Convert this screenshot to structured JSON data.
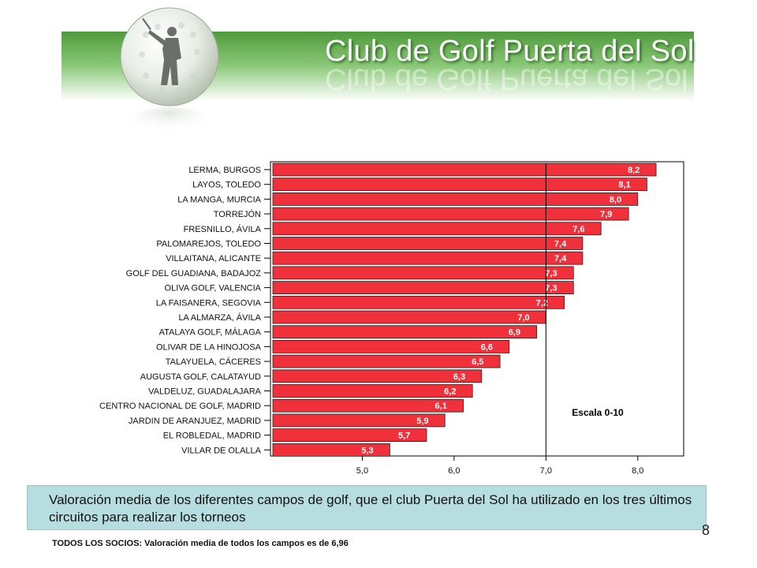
{
  "header": {
    "title": "Club de Golf Puerta del Sol"
  },
  "chart_data": {
    "type": "bar",
    "orientation": "horizontal",
    "categories": [
      "LERMA, BURGOS",
      "LAYOS, TOLEDO",
      "LA MANGA, MURCIA",
      "TORREJÓN",
      "FRESNILLO, ÁVILA",
      "PALOMAREJOS, TOLEDO",
      "VILLAITANA, ALICANTE",
      "GOLF DEL GUADIANA, BADAJOZ",
      "OLIVA GOLF, VALENCIA",
      "LA FAISANERA, SEGOVIA",
      "LA ALMARZA, ÁVILA",
      "ATALAYA GOLF, MÁLAGA",
      "OLIVAR DE LA HINOJOSA",
      "TALAYUELA, CÁCERES",
      "AUGUSTA GOLF,  CALATAYUD",
      "VALDELUZ, GUADALAJARA",
      "CENTRO NACIONAL DE GOLF, MADRID",
      "JARDIN DE ARANJUEZ, MADRID",
      "EL ROBLEDAL, MADRID",
      "VILLAR DE OLALLA"
    ],
    "values": [
      8.2,
      8.1,
      8.0,
      7.9,
      7.6,
      7.4,
      7.4,
      7.3,
      7.3,
      7.2,
      7.0,
      6.9,
      6.6,
      6.5,
      6.3,
      6.2,
      6.1,
      5.9,
      5.7,
      5.3
    ],
    "value_labels": [
      "8,2",
      "8,1",
      "8,0",
      "7,9",
      "7,6",
      "7,4",
      "7,4",
      "7,3",
      "7,3",
      "7,2",
      "7,0",
      "6,9",
      "6,6",
      "6,5",
      "6,3",
      "6,2",
      "6,1",
      "5,9",
      "5,7",
      "5,3"
    ],
    "xticks": [
      5.0,
      6.0,
      7.0,
      8.0
    ],
    "xtick_labels": [
      "5,0",
      "6,0",
      "7,0",
      "8,0"
    ],
    "xlim": [
      4.0,
      8.5
    ],
    "reference_line": 7.0,
    "annotation": "Escala 0-10",
    "bar_color": "#f0303a",
    "grid": false
  },
  "caption": "Valoración media de los diferentes campos de golf, que el club Puerta del Sol ha utilizado en los tres últimos circuitos para realizar los torneos",
  "footnote": "TODOS LOS SOCIOS: Valoración media de todos los campos es de 6,96",
  "page_number": "8"
}
